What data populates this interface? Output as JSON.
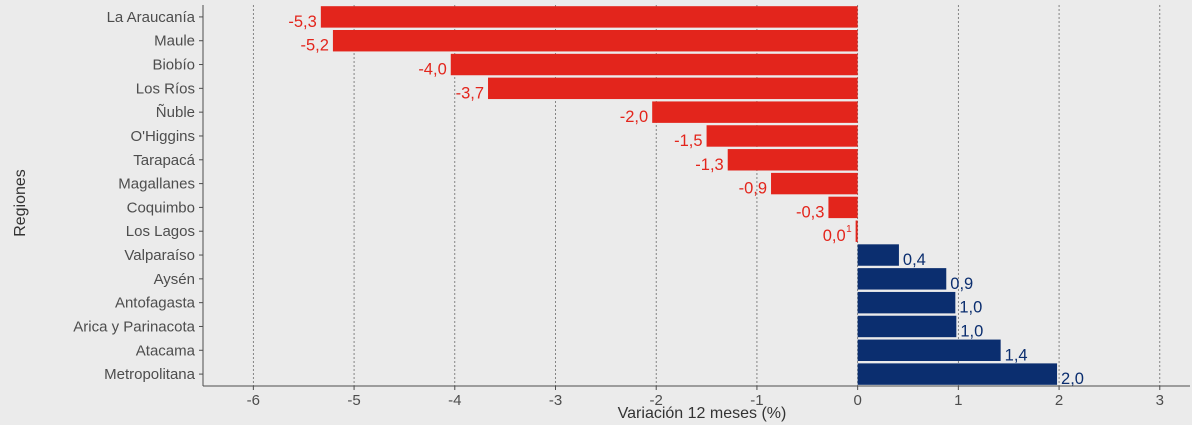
{
  "chart_data": {
    "type": "bar",
    "orientation": "horizontal",
    "categories": [
      "La Araucanía",
      "Maule",
      "Biobío",
      "Los Ríos",
      "Ñuble",
      "O'Higgins",
      "Tarapacá",
      "Magallanes",
      "Coquimbo",
      "Los Lagos",
      "Valparaíso",
      "Aysén",
      "Antofagasta",
      "Arica y Parinacota",
      "Atacama",
      "Metropolitana"
    ],
    "values": [
      -5.33,
      -5.21,
      -4.04,
      -3.67,
      -2.04,
      -1.5,
      -1.29,
      -0.86,
      -0.29,
      -0.02,
      0.41,
      0.88,
      0.97,
      0.98,
      1.42,
      1.98
    ],
    "value_labels": [
      "-5,3",
      "-5,2",
      "-4,0",
      "-3,7",
      "-2,0",
      "-1,5",
      "-1,3",
      "-0,9",
      "-0,3",
      "0,0",
      "0,4",
      "0,9",
      "1,0",
      "1,0",
      "1,4",
      "2,0"
    ],
    "value_label_superscripts": [
      "",
      "",
      "",
      "",
      "",
      "",
      "",
      "",
      "",
      "1",
      "",
      "",
      "",
      "",
      "",
      ""
    ],
    "xlabel": "Variación 12 meses (%)",
    "ylabel": "Regiones",
    "xlim": [
      -6.5,
      3.3
    ],
    "xticks": [
      -6,
      -5,
      -4,
      -3,
      -2,
      -1,
      0,
      1,
      2,
      3
    ],
    "xtick_labels": [
      "-6",
      "-5",
      "-4",
      "-3",
      "-2",
      "-1",
      "0",
      "1",
      "2",
      "3"
    ],
    "grid": "vertical dotted",
    "legend": "none",
    "colors": {
      "negative": "#e3251c",
      "positive": "#0b2e6f",
      "background": "#ebebeb"
    }
  }
}
